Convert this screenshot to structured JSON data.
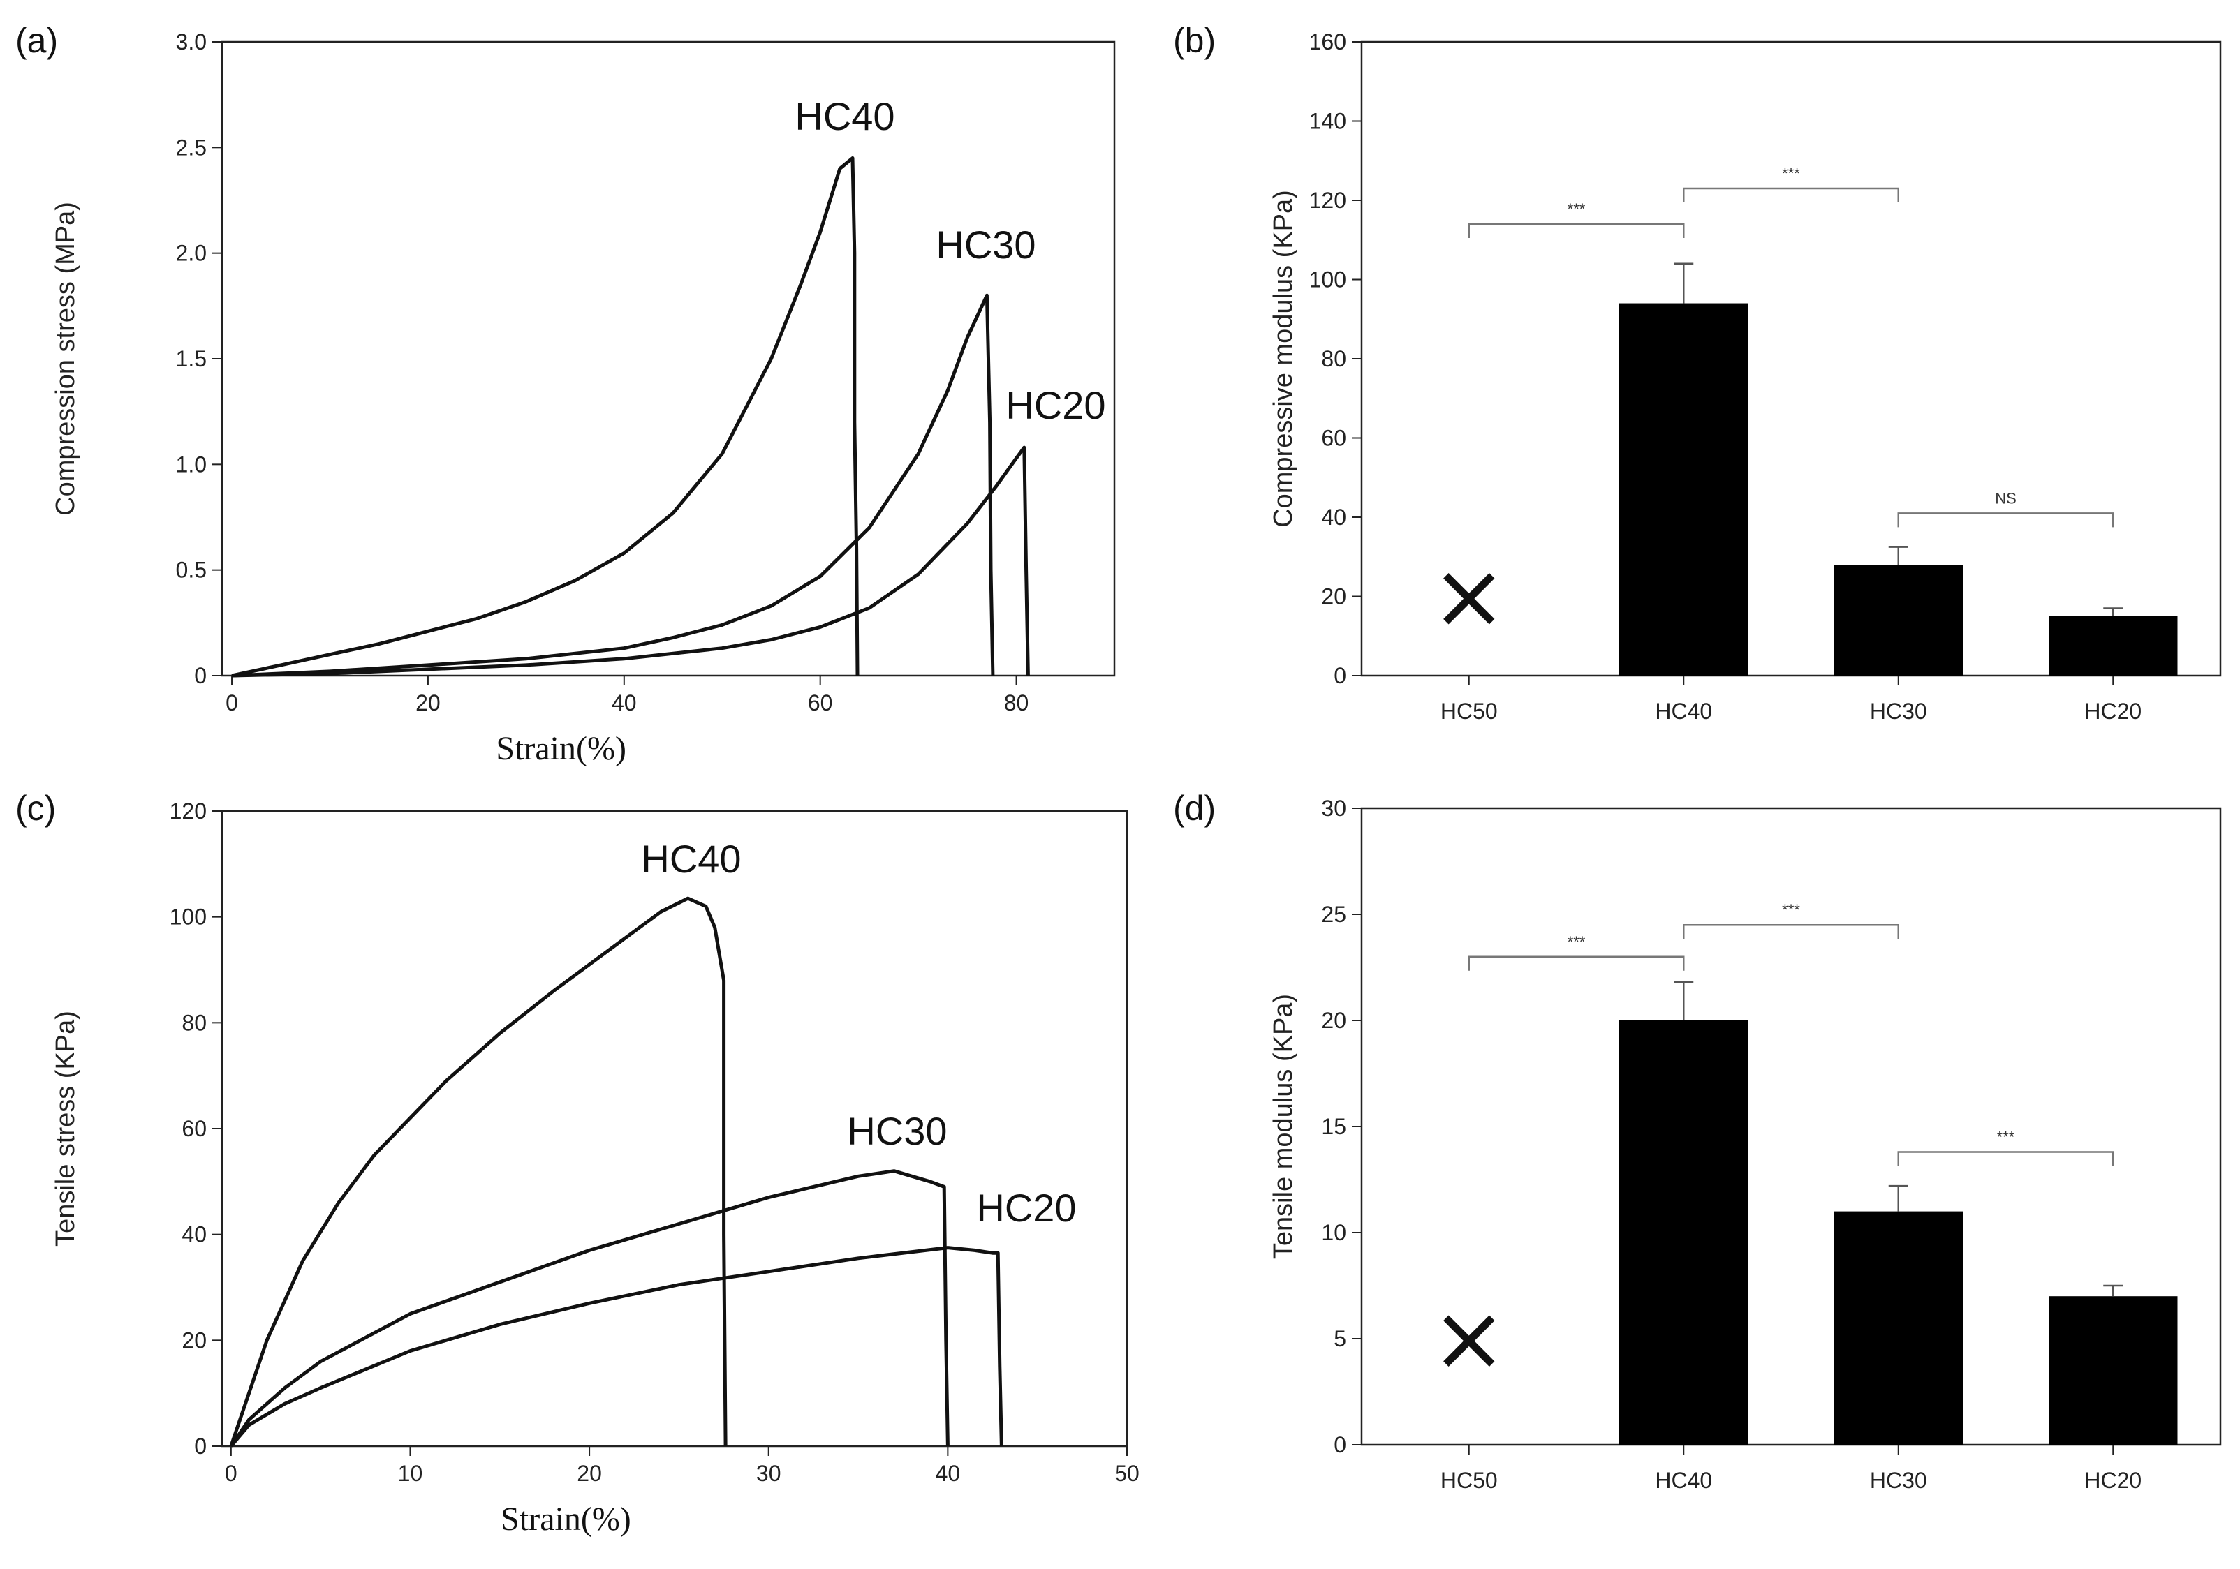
{
  "chart_data": [
    {
      "panel": "(a)",
      "type": "line",
      "xlabel": "Strain(%)",
      "ylabel": "Compression stress (MPa)",
      "xlim": [
        -1,
        90
      ],
      "ylim": [
        0,
        3.0
      ],
      "xticks": [
        0,
        20,
        40,
        60,
        80
      ],
      "xtick_labels": [
        "0",
        "20",
        "40",
        "60",
        "80"
      ],
      "yticks": [
        0,
        0.5,
        1.0,
        1.5,
        2.0,
        2.5,
        3.0
      ],
      "ytick_labels": [
        "0",
        "0.5",
        "1.0",
        "1.5",
        "2.0",
        "2.5",
        "3.0"
      ],
      "series": [
        {
          "name": "HC40",
          "x": [
            0,
            5,
            10,
            15,
            20,
            25,
            30,
            35,
            40,
            45,
            50,
            55,
            58,
            60,
            62,
            63.3,
            63.5,
            63.5,
            63.7,
            63.8
          ],
          "y": [
            0,
            0.05,
            0.1,
            0.15,
            0.21,
            0.27,
            0.35,
            0.45,
            0.58,
            0.77,
            1.05,
            1.5,
            1.85,
            2.1,
            2.4,
            2.45,
            2.0,
            1.2,
            0.6,
            0
          ]
        },
        {
          "name": "HC30",
          "x": [
            0,
            10,
            20,
            30,
            40,
            45,
            50,
            55,
            60,
            65,
            70,
            73,
            75,
            77,
            77.3,
            77.4,
            77.6
          ],
          "y": [
            0,
            0.02,
            0.05,
            0.08,
            0.13,
            0.18,
            0.24,
            0.33,
            0.47,
            0.7,
            1.05,
            1.35,
            1.6,
            1.8,
            1.2,
            0.5,
            0
          ]
        },
        {
          "name": "HC20",
          "x": [
            0,
            10,
            20,
            30,
            40,
            50,
            55,
            60,
            65,
            70,
            75,
            78,
            80,
            80.8,
            81,
            81.2
          ],
          "y": [
            0,
            0.01,
            0.03,
            0.05,
            0.08,
            0.13,
            0.17,
            0.23,
            0.32,
            0.48,
            0.72,
            0.9,
            1.03,
            1.08,
            0.5,
            0
          ]
        }
      ],
      "curve_labels": [
        "HC40",
        "HC30",
        "HC20"
      ]
    },
    {
      "panel": "(b)",
      "type": "bar",
      "ylabel": "Compressive modulus (KPa)",
      "categories": [
        "HC50",
        "HC40",
        "HC30",
        "HC20"
      ],
      "values": [
        null,
        94,
        28,
        15
      ],
      "errors": [
        null,
        10,
        4.5,
        2
      ],
      "ylim": [
        0,
        160
      ],
      "yticks": [
        0,
        20,
        40,
        60,
        80,
        100,
        120,
        140,
        160
      ],
      "ytick_labels": [
        "0",
        "20",
        "40",
        "60",
        "80",
        "100",
        "120",
        "140",
        "160"
      ],
      "failed_marker": {
        "category": "HC50",
        "symbol": "×",
        "value": 20
      },
      "significance": [
        {
          "from": 0,
          "to": 1,
          "y": 114,
          "label": "***"
        },
        {
          "from": 1,
          "to": 2,
          "y": 123,
          "label": "***"
        },
        {
          "from": 2,
          "to": 3,
          "y": 41,
          "label": "NS"
        }
      ]
    },
    {
      "panel": "(c)",
      "type": "line",
      "xlabel": "Strain(%)",
      "ylabel": "Tensile stress (KPa)",
      "xlim": [
        -0.5,
        50
      ],
      "ylim": [
        0,
        120
      ],
      "xticks": [
        0,
        10,
        20,
        30,
        40,
        50
      ],
      "xtick_labels": [
        "0",
        "10",
        "20",
        "30",
        "40",
        "50"
      ],
      "yticks": [
        0,
        20,
        40,
        60,
        80,
        100,
        120
      ],
      "ytick_labels": [
        "0",
        "20",
        "40",
        "60",
        "80",
        "100",
        "120"
      ],
      "series": [
        {
          "name": "HC40",
          "x": [
            0,
            1,
            2,
            4,
            6,
            8,
            10,
            12,
            15,
            18,
            20,
            22,
            24,
            25.5,
            26.5,
            27,
            27.3,
            27.5,
            27.5,
            27.6
          ],
          "y": [
            0,
            10,
            20,
            35,
            46,
            55,
            62,
            69,
            78,
            86,
            91,
            96,
            101,
            103.5,
            102,
            98,
            92,
            88,
            40,
            0
          ]
        },
        {
          "name": "HC30",
          "x": [
            0,
            1,
            3,
            5,
            10,
            15,
            20,
            25,
            30,
            35,
            37,
            38,
            39,
            39.8,
            39.9,
            40
          ],
          "y": [
            0,
            5,
            11,
            16,
            25,
            31,
            37,
            42,
            47,
            51,
            52,
            51,
            50,
            49,
            20,
            0
          ]
        },
        {
          "name": "HC20",
          "x": [
            0,
            1,
            3,
            5,
            10,
            15,
            20,
            25,
            30,
            35,
            40,
            41.5,
            42.5,
            42.8,
            42.9,
            43
          ],
          "y": [
            0,
            4,
            8,
            11,
            18,
            23,
            27,
            30.5,
            33,
            35.5,
            37.5,
            37,
            36.5,
            36.5,
            15,
            0
          ]
        }
      ],
      "curve_labels": [
        "HC40",
        "HC30",
        "HC20"
      ]
    },
    {
      "panel": "(d)",
      "type": "bar",
      "ylabel": "Tensile modulus (KPa)",
      "categories": [
        "HC50",
        "HC40",
        "HC30",
        "HC20"
      ],
      "values": [
        null,
        20,
        11,
        7
      ],
      "errors": [
        null,
        1.8,
        1.2,
        0.5
      ],
      "ylim": [
        0,
        30
      ],
      "yticks": [
        0,
        5,
        10,
        15,
        20,
        25,
        30
      ],
      "ytick_labels": [
        "0",
        "5",
        "10",
        "15",
        "20",
        "25",
        "30"
      ],
      "failed_marker": {
        "category": "HC50",
        "symbol": "×",
        "value": 5
      },
      "significance": [
        {
          "from": 0,
          "to": 1,
          "y": 23,
          "label": "***"
        },
        {
          "from": 1,
          "to": 2,
          "y": 24.5,
          "label": "***"
        },
        {
          "from": 2,
          "to": 3,
          "y": 13.8,
          "label": "***"
        }
      ]
    }
  ]
}
